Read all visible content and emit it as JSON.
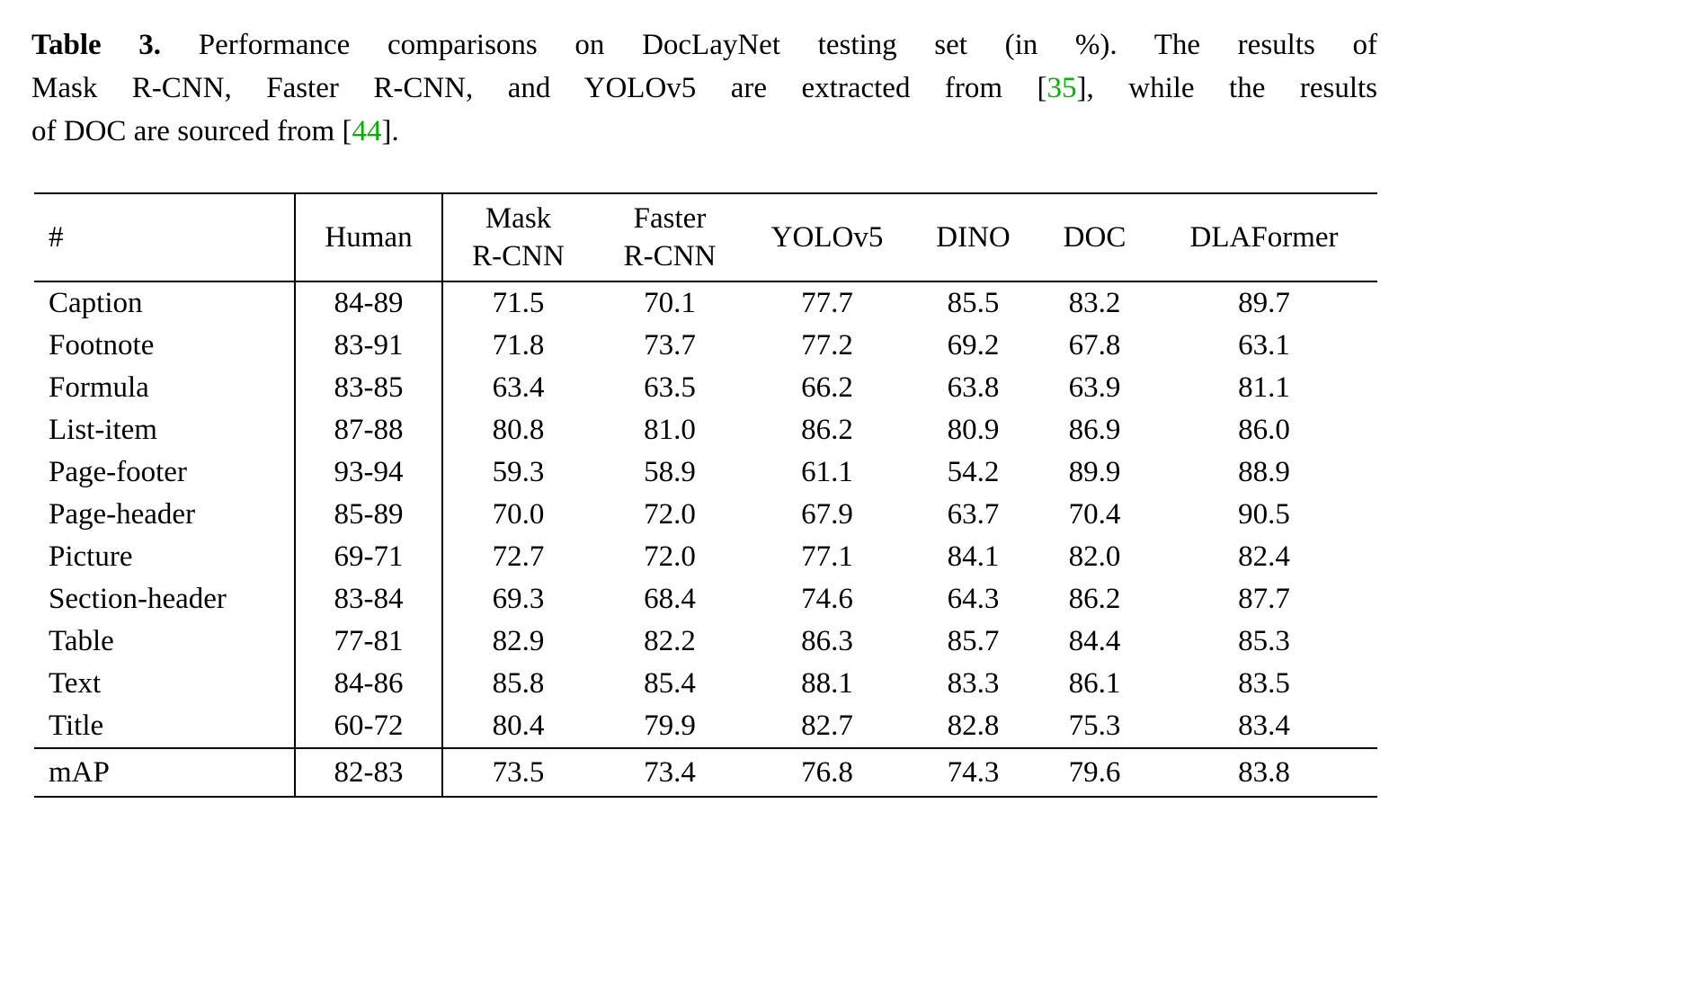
{
  "caption": {
    "lines": [
      {
        "name": "caption-line-1",
        "parts": [
          {
            "text": "Table 3.",
            "style": "bold",
            "name": "caption-table-label"
          },
          {
            "text": " Performance comparisons on DocLayNet testing set (in %). The results of",
            "style": "normal",
            "name": "caption-text"
          }
        ]
      },
      {
        "name": "caption-line-2",
        "parts": [
          {
            "text": "Mask R-CNN, Faster R-CNN, and YOLOv5 are extracted from [",
            "style": "normal",
            "name": "caption-text"
          },
          {
            "text": "35",
            "style": "green",
            "name": "citation-35"
          },
          {
            "text": "], while the results",
            "style": "normal",
            "name": "caption-text"
          }
        ]
      },
      {
        "name": "caption-line-3",
        "parts": [
          {
            "text": "of DOC are sourced from [",
            "style": "normal",
            "name": "caption-text"
          },
          {
            "text": "44",
            "style": "green",
            "name": "citation-44"
          },
          {
            "text": "].",
            "style": "normal",
            "name": "caption-text"
          }
        ]
      }
    ]
  },
  "colors": {
    "citation_green": "#00b400"
  },
  "chart_data": {
    "type": "table",
    "title": "Table 3. Performance comparisons on DocLayNet testing set (in %)",
    "columns": [
      "#",
      "Human",
      "Mask R-CNN",
      "Faster R-CNN",
      "YOLOv5",
      "DINO",
      "DOC",
      "DLAFormer"
    ],
    "rows": [
      [
        "Caption",
        "84-89",
        71.5,
        70.1,
        77.7,
        85.5,
        83.2,
        89.7
      ],
      [
        "Footnote",
        "83-91",
        71.8,
        73.7,
        77.2,
        69.2,
        67.8,
        63.1
      ],
      [
        "Formula",
        "83-85",
        63.4,
        63.5,
        66.2,
        63.8,
        63.9,
        81.1
      ],
      [
        "List-item",
        "87-88",
        80.8,
        81.0,
        86.2,
        80.9,
        86.9,
        86.0
      ],
      [
        "Page-footer",
        "93-94",
        59.3,
        58.9,
        61.1,
        54.2,
        89.9,
        88.9
      ],
      [
        "Page-header",
        "85-89",
        70.0,
        72.0,
        67.9,
        63.7,
        70.4,
        90.5
      ],
      [
        "Picture",
        "69-71",
        72.7,
        72.0,
        77.1,
        84.1,
        82.0,
        82.4
      ],
      [
        "Section-header",
        "83-84",
        69.3,
        68.4,
        74.6,
        64.3,
        86.2,
        87.7
      ],
      [
        "Table",
        "77-81",
        82.9,
        82.2,
        86.3,
        85.7,
        84.4,
        85.3
      ],
      [
        "Text",
        "84-86",
        85.8,
        85.4,
        88.1,
        83.3,
        86.1,
        83.5
      ],
      [
        "Title",
        "60-72",
        80.4,
        79.9,
        82.7,
        82.8,
        75.3,
        83.4
      ],
      [
        "mAP",
        "82-83",
        73.5,
        73.4,
        76.8,
        74.3,
        79.6,
        83.8
      ]
    ]
  },
  "table": {
    "headers": [
      "#",
      "Human",
      "Mask\nR-CNN",
      "Faster\nR-CNN",
      "YOLOv5",
      "DINO",
      "DOC",
      "DLAFormer"
    ],
    "rows": [
      {
        "label": "Caption",
        "values": [
          "84-89",
          "71.5",
          "70.1",
          "77.7",
          "85.5",
          "83.2",
          "89.7"
        ],
        "bold": 6
      },
      {
        "label": "Footnote",
        "values": [
          "83-91",
          "71.8",
          "73.7",
          "77.2",
          "69.2",
          "67.8",
          "63.1"
        ],
        "bold": 3
      },
      {
        "label": "Formula",
        "values": [
          "83-85",
          "63.4",
          "63.5",
          "66.2",
          "63.8",
          "63.9",
          "81.1"
        ],
        "bold": 6
      },
      {
        "label": "List-item",
        "values": [
          "87-88",
          "80.8",
          "81.0",
          "86.2",
          "80.9",
          "86.9",
          "86.0"
        ],
        "bold": 5
      },
      {
        "label": "Page-footer",
        "values": [
          "93-94",
          "59.3",
          "58.9",
          "61.1",
          "54.2",
          "89.9",
          "88.9"
        ],
        "bold": 5
      },
      {
        "label": "Page-header",
        "values": [
          "85-89",
          "70.0",
          "72.0",
          "67.9",
          "63.7",
          "70.4",
          "90.5"
        ],
        "bold": 6
      },
      {
        "label": "Picture",
        "values": [
          "69-71",
          "72.7",
          "72.0",
          "77.1",
          "84.1",
          "82.0",
          "82.4"
        ],
        "bold": 4
      },
      {
        "label": "Section-header",
        "values": [
          "83-84",
          "69.3",
          "68.4",
          "74.6",
          "64.3",
          "86.2",
          "87.7"
        ],
        "bold": 6
      },
      {
        "label": "Table",
        "values": [
          "77-81",
          "82.9",
          "82.2",
          "86.3",
          "85.7",
          "84.4",
          "85.3"
        ],
        "bold": 3
      },
      {
        "label": "Text",
        "values": [
          "84-86",
          "85.8",
          "85.4",
          "88.1",
          "83.3",
          "86.1",
          "83.5"
        ],
        "bold": 3
      },
      {
        "label": "Title",
        "values": [
          "60-72",
          "80.4",
          "79.9",
          "82.7",
          "82.8",
          "75.3",
          "83.4"
        ],
        "bold": 6
      }
    ],
    "footer": {
      "label": "mAP",
      "values": [
        "82-83",
        "73.5",
        "73.4",
        "76.8",
        "74.3",
        "79.6",
        "83.8"
      ],
      "bold": 6
    }
  }
}
